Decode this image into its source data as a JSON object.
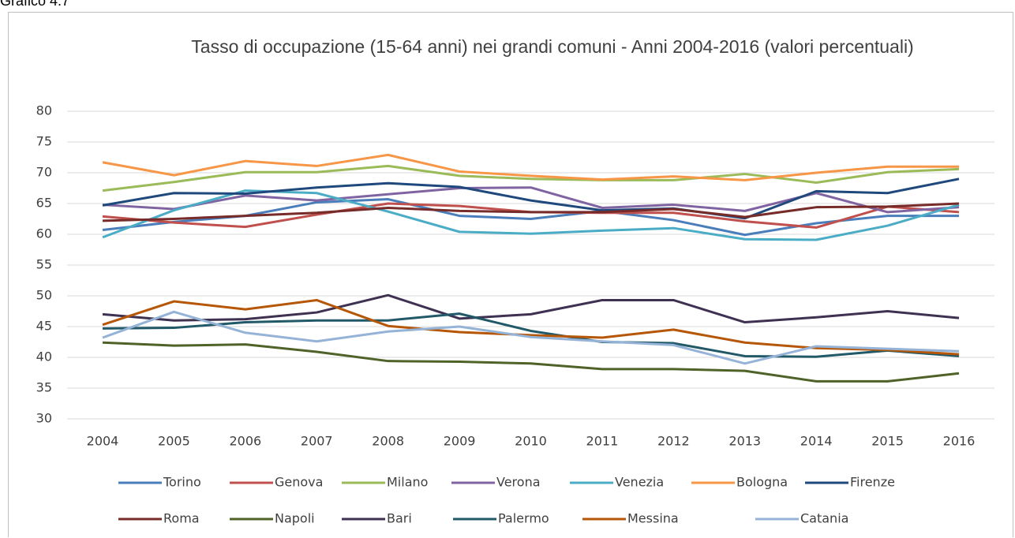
{
  "header": "Grafico 4.7",
  "chart_data": {
    "type": "line",
    "title": "Tasso di occupazione (15-64 anni) nei grandi comuni - Anni 2004-2016 (valori percentuali)",
    "categories": [
      "2004",
      "2005",
      "2006",
      "2007",
      "2008",
      "2009",
      "2010",
      "2011",
      "2012",
      "2013",
      "2014",
      "2015",
      "2016"
    ],
    "ylim": [
      30,
      80
    ],
    "yticks": [
      30,
      35,
      40,
      45,
      50,
      55,
      60,
      65,
      70,
      75,
      80
    ],
    "grid": true,
    "series": [
      {
        "name": "Torino",
        "color": "#4a7ebb",
        "values": [
          60.7,
          62,
          63,
          65.2,
          65.7,
          63,
          62.5,
          63.8,
          62.3,
          59.9,
          61.8,
          63,
          63
        ]
      },
      {
        "name": "Genova",
        "color": "#c0504d",
        "values": [
          62.9,
          61.9,
          61.2,
          63.2,
          65,
          64.6,
          63.6,
          63.5,
          63.5,
          62.1,
          61.1,
          64.5,
          63.6
        ]
      },
      {
        "name": "Milano",
        "color": "#9bbb59",
        "values": [
          67.1,
          68.5,
          70.1,
          70.1,
          71.1,
          69.5,
          69,
          68.8,
          68.8,
          69.8,
          68.4,
          70.1,
          70.6
        ]
      },
      {
        "name": "Verona",
        "color": "#8064a2",
        "values": [
          64.8,
          64.1,
          66.3,
          65.5,
          66.5,
          67.5,
          67.6,
          64.3,
          64.8,
          63.8,
          66.7,
          63.6,
          64.4
        ]
      },
      {
        "name": "Venezia",
        "color": "#4bacc6",
        "values": [
          59.5,
          63.9,
          67.1,
          66.7,
          63.7,
          60.4,
          60.1,
          60.6,
          61,
          59.2,
          59.1,
          61.4,
          64.8
        ]
      },
      {
        "name": "Bologna",
        "color": "#f79646",
        "values": [
          71.7,
          69.6,
          71.9,
          71.1,
          72.9,
          70.2,
          69.5,
          68.9,
          69.4,
          68.8,
          70,
          71,
          71
        ]
      },
      {
        "name": "Firenze",
        "color": "#1f497d",
        "values": [
          64.7,
          66.7,
          66.6,
          67.6,
          68.3,
          67.7,
          65.5,
          63.9,
          64.2,
          62.6,
          67,
          66.7,
          69
        ]
      },
      {
        "name": "Roma",
        "color": "#772c2a",
        "values": [
          62.2,
          62.5,
          63,
          63.5,
          64.3,
          63.8,
          63.6,
          63.6,
          64.1,
          62.8,
          64.4,
          64.5,
          65
        ]
      },
      {
        "name": "Napoli",
        "color": "#4f6228",
        "values": [
          42.4,
          41.9,
          42.1,
          40.9,
          39.4,
          39.3,
          39,
          38.1,
          38.1,
          37.8,
          36.1,
          36.1,
          37.4
        ]
      },
      {
        "name": "Bari",
        "color": "#3f3151",
        "values": [
          47,
          46,
          46.2,
          47.3,
          50.1,
          46.3,
          47,
          49.3,
          49.3,
          45.7,
          46.5,
          47.5,
          46.4
        ]
      },
      {
        "name": "Palermo",
        "color": "#215968",
        "values": [
          44.7,
          44.8,
          45.7,
          46,
          46,
          47.1,
          44.3,
          42.5,
          42.3,
          40.2,
          40.1,
          41.1,
          40.2
        ]
      },
      {
        "name": "Messina",
        "color": "#b65708",
        "values": [
          45.3,
          49.1,
          47.8,
          49.3,
          45.1,
          44.1,
          43.6,
          43.2,
          44.5,
          42.4,
          41.5,
          41.2,
          40.5
        ]
      },
      {
        "name": "Catania",
        "color": "#95b3d7",
        "values": [
          43.2,
          47.4,
          44,
          42.6,
          44.2,
          45,
          43.3,
          42.6,
          42,
          39,
          41.8,
          41.4,
          41
        ]
      }
    ]
  }
}
